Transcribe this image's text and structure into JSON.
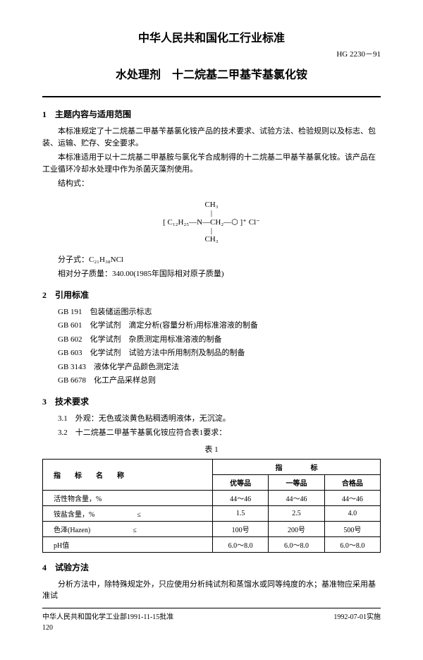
{
  "header": {
    "title": "中华人民共和国化工行业标准",
    "code": "HG 2230－91",
    "subtitle": "水处理剂　十二烷基二甲基苄基氯化铵"
  },
  "s1": {
    "h": "1　主题内容与适用范围",
    "p1": "本标准规定了十二烷基二甲基苄基氯化铵产品的技术要求、试验方法、检验规则以及标志、包装、运输、贮存、安全要求。",
    "p2": "本标准适用于以十二烷基二甲基胺与氯化苄合成制得的十二烷基二甲基苄基氯化铵。该产品在工业循环冷却水处理中作为杀菌灭藻剂使用。",
    "p3": "结构式：",
    "formula": "[ C₁₂H₂₅—N—CH₂—⬡ ]⁺ Cl⁻",
    "f_ch3a": "CH₃",
    "f_ch3b": "CH₃",
    "p4": "分子式：C₂₁H₃₈NCl",
    "p5": "相对分子质量：340.00(1985年国际相对原子质量)"
  },
  "s2": {
    "h": "2　引用标准",
    "refs": [
      {
        "c": "GB 191",
        "t": "包装储运图示标志"
      },
      {
        "c": "GB 601",
        "t": "化学试剂　滴定分析(容量分析)用标准溶液的制备"
      },
      {
        "c": "GB 602",
        "t": "化学试剂　杂质测定用标准溶液的制备"
      },
      {
        "c": "GB 603",
        "t": "化学试剂　试验方法中所用制剂及制品的制备"
      },
      {
        "c": "GB 3143",
        "t": "液体化学产品颜色测定法"
      },
      {
        "c": "GB 6678",
        "t": "化工产品采样总则"
      }
    ]
  },
  "s3": {
    "h": "3　技术要求",
    "p1": "3.1　外观：无色或淡黄色粘稠透明液体，无沉淀。",
    "p2": "3.2　十二烷基二甲基苄基氯化铵应符合表1要求：",
    "tcap": "表 1"
  },
  "table": {
    "h1": "指　　标　　名　　称",
    "h2": "指　　　　标",
    "c1": "优等品",
    "c2": "一等品",
    "c3": "合格品",
    "r1": {
      "n": "活性物含量，%",
      "v1": "44～46",
      "v2": "44～46",
      "v3": "44～46"
    },
    "r2": {
      "n": "铵盐含量，%　　　　　　≤",
      "v1": "1.5",
      "v2": "2.5",
      "v3": "4.0"
    },
    "r3": {
      "n": "色泽(Hazen)　　　　　　≤",
      "v1": "100号",
      "v2": "200号",
      "v3": "500号"
    },
    "r4": {
      "n": "pH值",
      "v1": "6.0～8.0",
      "v2": "6.0～8.0",
      "v3": "6.0～8.0"
    }
  },
  "s4": {
    "h": "4　试验方法",
    "p1": "分析方法中，除特殊规定外，只应使用分析纯试剂和蒸馏水或同等纯度的水；基准物应采用基准试"
  },
  "footer": {
    "l": "中华人民共和国化学工业部1991-11-15批准",
    "r": "1992-07-01实施",
    "pn": "120"
  }
}
